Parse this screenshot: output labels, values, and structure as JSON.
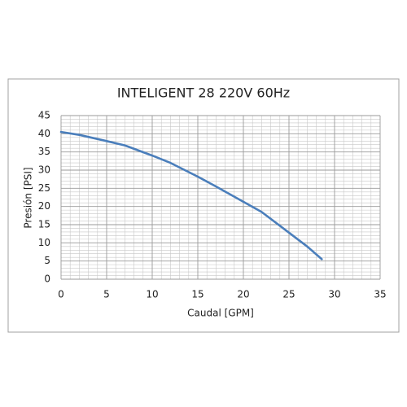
{
  "chart_data": {
    "type": "line",
    "title": "INTELIGENT 28 220V 60Hz",
    "x_label": "Caudal [GPM]",
    "y_label": "Presión [PSI]",
    "x": [
      0,
      2,
      5,
      7,
      10,
      12,
      15,
      17,
      20,
      22,
      25,
      27,
      28.6
    ],
    "series": [
      {
        "name": "INTELIGENT 28",
        "color": "#4a7ebb",
        "values": [
          40.5,
          39.7,
          38,
          36.8,
          34,
          32,
          28.2,
          25.5,
          21.3,
          18.5,
          12.8,
          9,
          5.5
        ]
      }
    ],
    "xlim": [
      0,
      35
    ],
    "xticks": [
      0,
      5,
      10,
      15,
      20,
      25,
      30,
      35
    ],
    "ylim": [
      0,
      45
    ],
    "yticks": [
      0,
      5,
      10,
      15,
      20,
      25,
      30,
      35,
      40,
      45
    ],
    "xminorticks": [
      1,
      2,
      3,
      4,
      6,
      7,
      8,
      9,
      11,
      12,
      13,
      14,
      16,
      17,
      18,
      19,
      21,
      22,
      23,
      24,
      26,
      27,
      28,
      29,
      31,
      32,
      33,
      34
    ],
    "yminorticks": [
      1,
      2,
      3,
      4,
      6,
      7,
      8,
      9,
      11,
      12,
      13,
      14,
      16,
      17,
      18,
      19,
      21,
      22,
      23,
      24,
      26,
      27,
      28,
      29,
      31,
      32,
      33,
      34,
      36,
      37,
      38,
      39,
      41,
      42,
      43,
      44
    ],
    "grid": true
  }
}
